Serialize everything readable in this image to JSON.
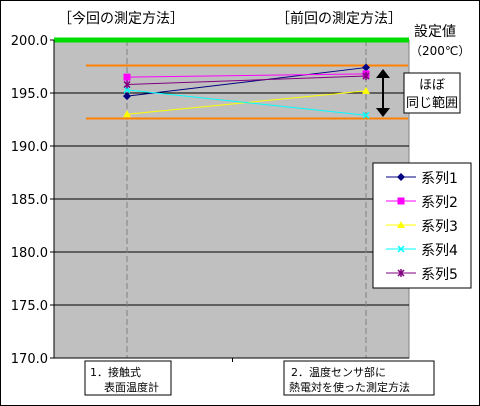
{
  "chart_data": {
    "type": "line",
    "categories": [
      "1. 接触式\n表面温度計",
      "2. 温度センサ部に\n熱電対を使った測定方法"
    ],
    "ylim": [
      170.0,
      200.0
    ],
    "yticks": [
      "170.0",
      "175.0",
      "180.0",
      "185.0",
      "190.0",
      "195.0",
      "200.0"
    ],
    "grid": true,
    "legend_position": "right",
    "series": [
      {
        "name": "系列1",
        "values": [
          194.7,
          197.4
        ],
        "color": "#000080",
        "marker": "diamond"
      },
      {
        "name": "系列2",
        "values": [
          196.5,
          196.8
        ],
        "color": "#ff00ff",
        "marker": "square"
      },
      {
        "name": "系列3",
        "values": [
          193.0,
          195.2
        ],
        "color": "#ffff00",
        "marker": "triangle"
      },
      {
        "name": "系列4",
        "values": [
          195.3,
          192.9
        ],
        "color": "#00ffff",
        "marker": "x"
      },
      {
        "name": "系列5",
        "values": [
          195.8,
          196.6
        ],
        "color": "#800080",
        "marker": "star"
      }
    ],
    "reference_lines": {
      "setpoint": {
        "value": 200.0,
        "color": "#00dd00"
      },
      "range_upper": {
        "value": 197.6,
        "color": "#ff8000"
      },
      "range_lower": {
        "value": 192.6,
        "color": "#ff8000"
      }
    },
    "annotations": {
      "left_header": "［今回の測定方法］",
      "right_header": "［前回の測定方法］",
      "setpoint_label": [
        "設定値",
        "（200℃）"
      ],
      "range_label": [
        "ほぼ",
        "同じ範囲"
      ],
      "category_box_1": [
        "1．接触式",
        "表面温度計"
      ],
      "category_box_2": [
        "2．温度センサ部に",
        "熱電対を使った測定方法"
      ]
    }
  }
}
